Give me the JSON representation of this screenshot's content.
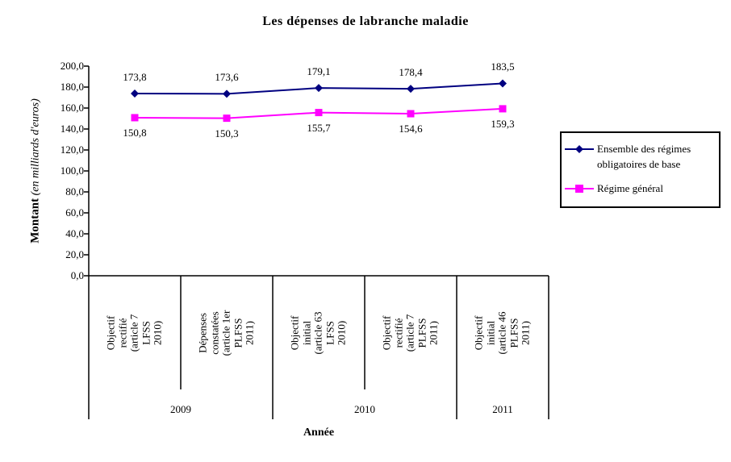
{
  "chart": {
    "title": "Les dépenses de labranche maladie",
    "x_axis_title": "Année",
    "y_axis_title_main": "Montant",
    "y_axis_title_unit": " (en milliards d'euros)"
  },
  "chart_data": {
    "type": "line",
    "title": "Les dépenses de labranche maladie",
    "xlabel": "Année",
    "ylabel": "Montant (en milliards d'euros)",
    "ylim": [
      0,
      200
    ],
    "ytick_step": 20,
    "grid": false,
    "legend_position": "right",
    "ytick_labels": [
      "0,0",
      "20,0",
      "40,0",
      "60,0",
      "80,0",
      "100,0",
      "120,0",
      "140,0",
      "160,0",
      "180,0",
      "200,0"
    ],
    "categories": [
      "Objectif rectifié\n(article 7 LFSS 2010)",
      "Dépenses\nconstatées\n(article 1er\nPLFSS 2011)",
      "Objectif initial\n(article 63 LFSS\n2010)",
      "Objectif rectifié\n(article 7\nPLFSS 2011)",
      "Objectif initial\n(article 46 PLFSS\n2011)"
    ],
    "year_groups": [
      {
        "label": "2009",
        "span": 2
      },
      {
        "label": "2010",
        "span": 2
      },
      {
        "label": "2011",
        "span": 1
      }
    ],
    "series": [
      {
        "name": "Ensemble des régimes obligatoires de base",
        "color": "#000080",
        "marker": "diamond",
        "values": [
          173.8,
          173.6,
          179.1,
          178.4,
          183.5
        ],
        "labels": [
          "173,8",
          "173,6",
          "179,1",
          "178,4",
          "183,5"
        ]
      },
      {
        "name": "Régime général",
        "color": "#FF00FF",
        "marker": "square",
        "values": [
          150.8,
          150.3,
          155.7,
          154.6,
          159.3
        ],
        "labels": [
          "150,8",
          "150,3",
          "155,7",
          "154,6",
          "159,3"
        ]
      }
    ]
  }
}
